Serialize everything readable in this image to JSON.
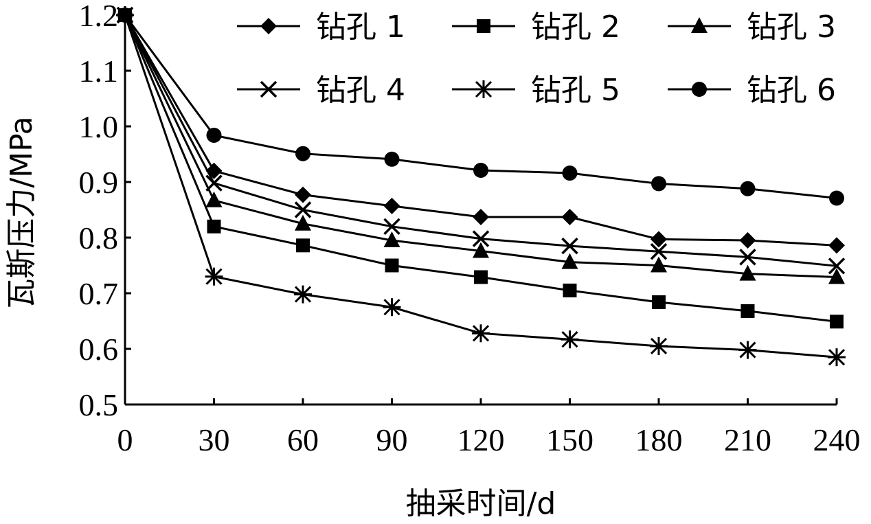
{
  "chart_data": {
    "type": "line",
    "title": "",
    "xlabel": "抽采时间/d",
    "ylabel": "瓦斯压力/MPa",
    "xlim": [
      0,
      240
    ],
    "ylim": [
      0.5,
      1.2
    ],
    "x_ticks": [
      "0",
      "30",
      "60",
      "90",
      "120",
      "150",
      "180",
      "210",
      "240"
    ],
    "y_ticks": [
      "0.5",
      "0.6",
      "0.7",
      "0.8",
      "0.9",
      "1.0",
      "1.1",
      "1.2"
    ],
    "grid": false,
    "legend_position": "top-right",
    "x": [
      0,
      30,
      60,
      90,
      120,
      150,
      180,
      210,
      240
    ],
    "series": [
      {
        "name": "钻孔 1",
        "marker": "diamond",
        "values": [
          1.2,
          0.92,
          0.877,
          0.857,
          0.837,
          0.837,
          0.797,
          0.795,
          0.786
        ]
      },
      {
        "name": "钻孔 2",
        "marker": "square",
        "values": [
          1.2,
          0.82,
          0.786,
          0.75,
          0.729,
          0.705,
          0.684,
          0.668,
          0.649
        ]
      },
      {
        "name": "钻孔 3",
        "marker": "triangle",
        "values": [
          1.2,
          0.867,
          0.825,
          0.795,
          0.776,
          0.756,
          0.75,
          0.735,
          0.729
        ]
      },
      {
        "name": "钻孔 4",
        "marker": "x",
        "values": [
          1.2,
          0.898,
          0.85,
          0.82,
          0.798,
          0.785,
          0.775,
          0.765,
          0.749
        ]
      },
      {
        "name": "钻孔 5",
        "marker": "asterisk",
        "values": [
          1.2,
          0.73,
          0.698,
          0.675,
          0.628,
          0.617,
          0.605,
          0.598,
          0.585
        ]
      },
      {
        "name": "钻孔 6",
        "marker": "circle",
        "values": [
          1.2,
          0.984,
          0.951,
          0.941,
          0.921,
          0.916,
          0.897,
          0.888,
          0.871
        ]
      }
    ],
    "colors": {
      "line": "#000000",
      "background": "#ffffff"
    }
  }
}
